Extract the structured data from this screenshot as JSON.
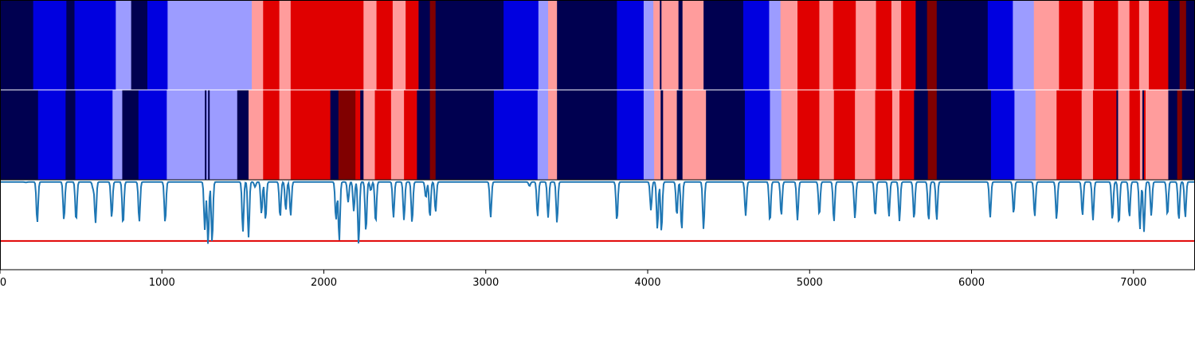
{
  "colors": {
    "state_palette": [
      "#000050",
      "#0000e0",
      "#9c9cff",
      "#ff9c9c",
      "#e00000",
      "#800000"
    ],
    "signal_line": "#1f77b4",
    "threshold_line": "#e00000",
    "separator": "#ffffff",
    "frame": "#000000"
  },
  "chart_data": [
    {
      "type": "heatmap",
      "x_range": [
        0,
        7380
      ],
      "note_states": "state index 0..5 maps to state_palette",
      "segments": [
        [
          0,
          205,
          0
        ],
        [
          205,
          410,
          1
        ],
        [
          410,
          460,
          0
        ],
        [
          460,
          715,
          1
        ],
        [
          715,
          810,
          2
        ],
        [
          810,
          910,
          0
        ],
        [
          910,
          1035,
          1
        ],
        [
          1035,
          1555,
          2
        ],
        [
          1555,
          1625,
          3
        ],
        [
          1625,
          1725,
          4
        ],
        [
          1725,
          1795,
          3
        ],
        [
          1795,
          2245,
          4
        ],
        [
          2245,
          2325,
          3
        ],
        [
          2325,
          2425,
          4
        ],
        [
          2425,
          2505,
          3
        ],
        [
          2505,
          2585,
          4
        ],
        [
          2585,
          2655,
          0
        ],
        [
          2655,
          2690,
          5
        ],
        [
          2690,
          3110,
          0
        ],
        [
          3110,
          3325,
          1
        ],
        [
          3325,
          3385,
          2
        ],
        [
          3385,
          3440,
          3
        ],
        [
          3440,
          3810,
          0
        ],
        [
          3810,
          3975,
          1
        ],
        [
          3975,
          4035,
          2
        ],
        [
          4035,
          4075,
          3
        ],
        [
          4075,
          4085,
          0
        ],
        [
          4085,
          4190,
          3
        ],
        [
          4190,
          4215,
          0
        ],
        [
          4215,
          4345,
          3
        ],
        [
          4345,
          4590,
          0
        ],
        [
          4590,
          4750,
          1
        ],
        [
          4750,
          4820,
          2
        ],
        [
          4820,
          4925,
          3
        ],
        [
          4925,
          5060,
          4
        ],
        [
          5060,
          5145,
          3
        ],
        [
          5145,
          5285,
          4
        ],
        [
          5285,
          5410,
          3
        ],
        [
          5410,
          5505,
          4
        ],
        [
          5505,
          5565,
          3
        ],
        [
          5565,
          5655,
          4
        ],
        [
          5655,
          5725,
          0
        ],
        [
          5725,
          5785,
          5
        ],
        [
          5785,
          6100,
          0
        ],
        [
          6100,
          6255,
          1
        ],
        [
          6255,
          6385,
          2
        ],
        [
          6385,
          6540,
          3
        ],
        [
          6540,
          6685,
          4
        ],
        [
          6685,
          6755,
          3
        ],
        [
          6755,
          6905,
          4
        ],
        [
          6905,
          6975,
          3
        ],
        [
          6975,
          7035,
          4
        ],
        [
          7035,
          7095,
          3
        ],
        [
          7095,
          7215,
          4
        ],
        [
          7215,
          7285,
          0
        ],
        [
          7285,
          7325,
          5
        ],
        [
          7325,
          7380,
          0
        ]
      ]
    },
    {
      "type": "heatmap",
      "x_range": [
        0,
        7380
      ],
      "segments": [
        [
          0,
          235,
          0
        ],
        [
          235,
          405,
          1
        ],
        [
          405,
          465,
          0
        ],
        [
          465,
          695,
          1
        ],
        [
          695,
          755,
          2
        ],
        [
          755,
          855,
          0
        ],
        [
          855,
          1030,
          1
        ],
        [
          1030,
          1265,
          2
        ],
        [
          1265,
          1275,
          0
        ],
        [
          1275,
          1285,
          2
        ],
        [
          1285,
          1295,
          0
        ],
        [
          1295,
          1465,
          2
        ],
        [
          1465,
          1535,
          0
        ],
        [
          1535,
          1625,
          3
        ],
        [
          1625,
          1725,
          4
        ],
        [
          1725,
          1795,
          3
        ],
        [
          1795,
          2040,
          4
        ],
        [
          2040,
          2090,
          0
        ],
        [
          2090,
          2195,
          5
        ],
        [
          2195,
          2225,
          4
        ],
        [
          2225,
          2245,
          0
        ],
        [
          2245,
          2315,
          3
        ],
        [
          2315,
          2415,
          4
        ],
        [
          2415,
          2495,
          3
        ],
        [
          2495,
          2575,
          4
        ],
        [
          2575,
          2655,
          0
        ],
        [
          2655,
          2690,
          5
        ],
        [
          2690,
          3050,
          0
        ],
        [
          3050,
          3320,
          1
        ],
        [
          3320,
          3385,
          2
        ],
        [
          3385,
          3440,
          3
        ],
        [
          3440,
          3810,
          0
        ],
        [
          3810,
          3975,
          1
        ],
        [
          3975,
          4040,
          2
        ],
        [
          4040,
          4080,
          3
        ],
        [
          4080,
          4095,
          0
        ],
        [
          4095,
          4180,
          3
        ],
        [
          4180,
          4215,
          0
        ],
        [
          4215,
          4360,
          3
        ],
        [
          4360,
          4600,
          0
        ],
        [
          4600,
          4755,
          1
        ],
        [
          4755,
          4825,
          2
        ],
        [
          4825,
          4925,
          3
        ],
        [
          4925,
          5060,
          4
        ],
        [
          5060,
          5150,
          3
        ],
        [
          5150,
          5280,
          4
        ],
        [
          5280,
          5405,
          3
        ],
        [
          5405,
          5510,
          4
        ],
        [
          5510,
          5555,
          3
        ],
        [
          5555,
          5645,
          4
        ],
        [
          5645,
          5730,
          0
        ],
        [
          5730,
          5785,
          5
        ],
        [
          5785,
          6120,
          0
        ],
        [
          6120,
          6265,
          1
        ],
        [
          6265,
          6395,
          2
        ],
        [
          6395,
          6525,
          3
        ],
        [
          6525,
          6680,
          4
        ],
        [
          6680,
          6750,
          3
        ],
        [
          6750,
          6895,
          4
        ],
        [
          6895,
          6905,
          0
        ],
        [
          6905,
          6975,
          3
        ],
        [
          6975,
          7040,
          4
        ],
        [
          7040,
          7055,
          3
        ],
        [
          7055,
          7065,
          0
        ],
        [
          7065,
          7075,
          4
        ],
        [
          7075,
          7215,
          3
        ],
        [
          7215,
          7270,
          0
        ],
        [
          7270,
          7300,
          5
        ],
        [
          7300,
          7380,
          0
        ]
      ]
    },
    {
      "type": "line",
      "x_range": [
        0,
        7380
      ],
      "y_range": [
        0,
        1
      ],
      "baseline": 0.975,
      "threshold": 0.32,
      "dips": [
        [
          160,
          0.97
        ],
        [
          230,
          0.52
        ],
        [
          395,
          0.55
        ],
        [
          470,
          0.54
        ],
        [
          575,
          0.9
        ],
        [
          590,
          0.52
        ],
        [
          690,
          0.58
        ],
        [
          760,
          0.5
        ],
        [
          860,
          0.53
        ],
        [
          1020,
          0.52
        ],
        [
          1265,
          0.44
        ],
        [
          1285,
          0.28
        ],
        [
          1310,
          0.3
        ],
        [
          1500,
          0.42
        ],
        [
          1535,
          0.36
        ],
        [
          1575,
          0.92
        ],
        [
          1615,
          0.62
        ],
        [
          1640,
          0.55
        ],
        [
          1730,
          0.58
        ],
        [
          1765,
          0.66
        ],
        [
          1795,
          0.6
        ],
        [
          2075,
          0.55
        ],
        [
          2095,
          0.32
        ],
        [
          2150,
          0.75
        ],
        [
          2185,
          0.65
        ],
        [
          2215,
          0.28
        ],
        [
          2260,
          0.42
        ],
        [
          2290,
          0.88
        ],
        [
          2320,
          0.52
        ],
        [
          2430,
          0.58
        ],
        [
          2495,
          0.55
        ],
        [
          2545,
          0.52
        ],
        [
          2630,
          0.8
        ],
        [
          2655,
          0.58
        ],
        [
          2690,
          0.64
        ],
        [
          3030,
          0.58
        ],
        [
          3270,
          0.93
        ],
        [
          3320,
          0.59
        ],
        [
          3385,
          0.58
        ],
        [
          3440,
          0.52
        ],
        [
          3810,
          0.54
        ],
        [
          4020,
          0.66
        ],
        [
          4060,
          0.45
        ],
        [
          4085,
          0.42
        ],
        [
          4180,
          0.6
        ],
        [
          4210,
          0.44
        ],
        [
          4345,
          0.45
        ],
        [
          4605,
          0.6
        ],
        [
          4755,
          0.53
        ],
        [
          4825,
          0.6
        ],
        [
          4925,
          0.55
        ],
        [
          5060,
          0.6
        ],
        [
          5150,
          0.53
        ],
        [
          5280,
          0.57
        ],
        [
          5405,
          0.59
        ],
        [
          5490,
          0.59
        ],
        [
          5555,
          0.54
        ],
        [
          5645,
          0.56
        ],
        [
          5735,
          0.54
        ],
        [
          5785,
          0.55
        ],
        [
          6115,
          0.58
        ],
        [
          6260,
          0.62
        ],
        [
          6390,
          0.59
        ],
        [
          6525,
          0.56
        ],
        [
          6685,
          0.6
        ],
        [
          6750,
          0.55
        ],
        [
          6870,
          0.55
        ],
        [
          6910,
          0.5
        ],
        [
          6975,
          0.58
        ],
        [
          7040,
          0.45
        ],
        [
          7065,
          0.42
        ],
        [
          7110,
          0.6
        ],
        [
          7210,
          0.6
        ],
        [
          7280,
          0.55
        ],
        [
          7320,
          0.58
        ]
      ],
      "xticks": [
        0,
        1000,
        2000,
        3000,
        4000,
        5000,
        6000,
        7000
      ]
    }
  ]
}
